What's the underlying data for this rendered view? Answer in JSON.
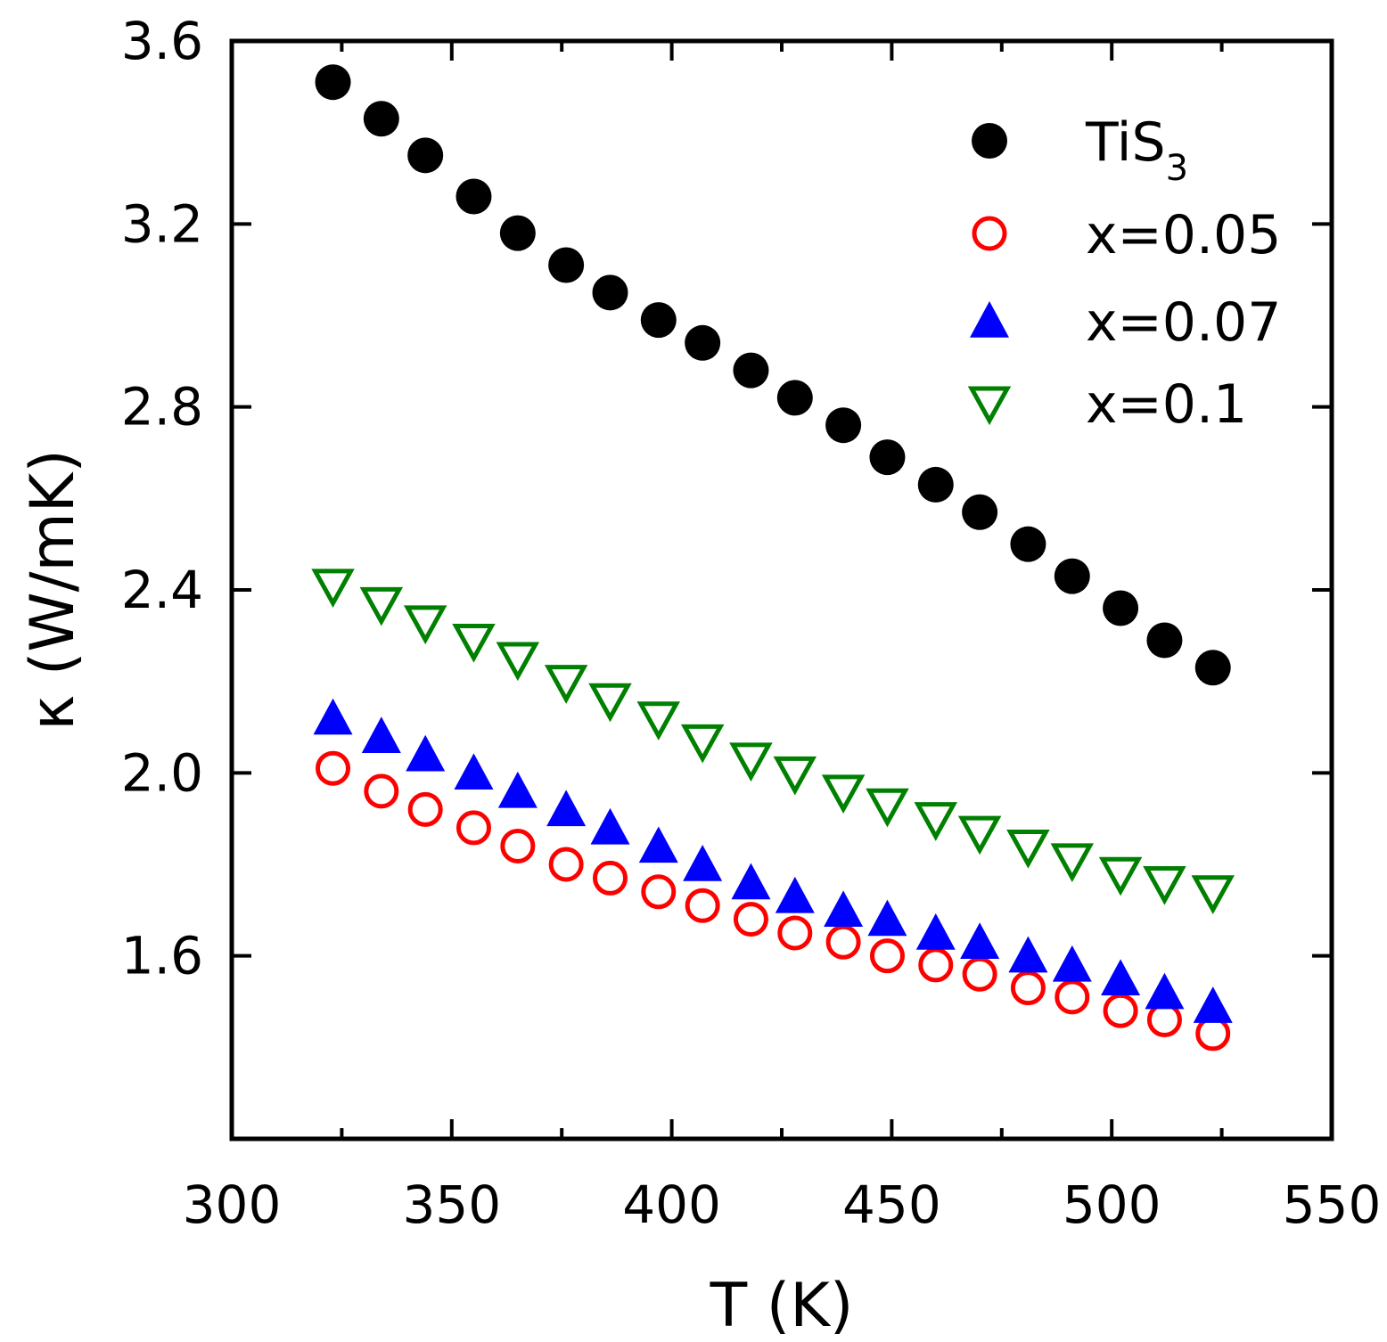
{
  "chart_data": {
    "type": "scatter",
    "title": "",
    "xlabel": "T (K)",
    "ylabel": "κ (W/mK)",
    "xlim": [
      300,
      550
    ],
    "ylim": [
      1.2,
      3.6
    ],
    "xticks": [
      300,
      350,
      400,
      450,
      500,
      550
    ],
    "xtick_labels": [
      "300",
      "350",
      "400",
      "450",
      "500",
      "550"
    ],
    "yticks": [
      1.6,
      2.0,
      2.4,
      2.8,
      3.2,
      3.6
    ],
    "ytick_labels": [
      "1.6",
      "2.0",
      "2.4",
      "2.8",
      "3.2",
      "3.6"
    ],
    "grid": false,
    "legend_position": "top-right",
    "x": [
      323,
      334,
      344,
      355,
      365,
      376,
      386,
      397,
      407,
      418,
      428,
      439,
      449,
      460,
      470,
      481,
      491,
      502,
      512,
      523
    ],
    "series": [
      {
        "name": "TiS",
        "name_subscript": "3",
        "marker": "filled-circle",
        "color": "#000000",
        "values": [
          3.51,
          3.43,
          3.35,
          3.26,
          3.18,
          3.11,
          3.05,
          2.99,
          2.94,
          2.88,
          2.82,
          2.76,
          2.69,
          2.63,
          2.57,
          2.5,
          2.43,
          2.36,
          2.29,
          2.23
        ]
      },
      {
        "name": "x=0.05",
        "marker": "open-circle",
        "color": "#ff0000",
        "values": [
          2.01,
          1.96,
          1.92,
          1.88,
          1.84,
          1.8,
          1.77,
          1.74,
          1.71,
          1.68,
          1.65,
          1.63,
          1.6,
          1.58,
          1.56,
          1.53,
          1.51,
          1.48,
          1.46,
          1.43
        ]
      },
      {
        "name": "x=0.07",
        "marker": "filled-triangle-up",
        "color": "#0000ff",
        "values": [
          2.12,
          2.08,
          2.04,
          2.0,
          1.96,
          1.92,
          1.88,
          1.84,
          1.8,
          1.76,
          1.73,
          1.7,
          1.68,
          1.65,
          1.63,
          1.6,
          1.58,
          1.55,
          1.52,
          1.49
        ]
      },
      {
        "name": "x=0.1",
        "marker": "open-triangle-down",
        "color": "#008000",
        "values": [
          2.41,
          2.37,
          2.33,
          2.29,
          2.25,
          2.2,
          2.16,
          2.12,
          2.07,
          2.03,
          2.0,
          1.96,
          1.93,
          1.9,
          1.87,
          1.84,
          1.81,
          1.78,
          1.76,
          1.74
        ]
      }
    ]
  }
}
